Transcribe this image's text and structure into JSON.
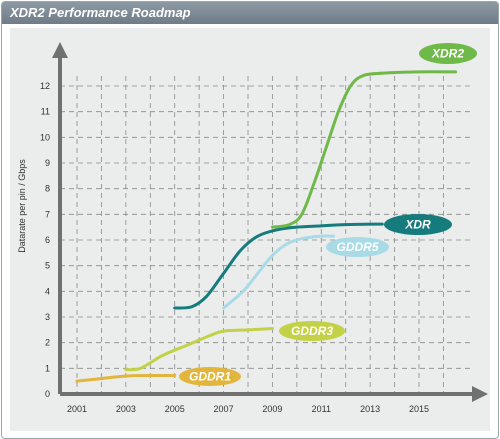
{
  "header": {
    "title": "XDR2 Performance Roadmap"
  },
  "chart_data": {
    "type": "line",
    "title": "XDR2 Performance Roadmap",
    "xlabel": "",
    "ylabel": "Datarate per pin / Gbps",
    "xlim": [
      2000.5,
      2017
    ],
    "ylim": [
      0,
      13
    ],
    "x_ticks": [
      2001,
      2003,
      2005,
      2007,
      2009,
      2011,
      2013,
      2015
    ],
    "y_ticks": [
      0,
      1,
      2,
      3,
      4,
      5,
      6,
      7,
      8,
      9,
      10,
      11,
      12
    ],
    "grid": true,
    "series": [
      {
        "name": "GDDR1",
        "color": "#e2b63c",
        "points": [
          [
            2001,
            0.5
          ],
          [
            2002,
            0.6
          ],
          [
            2003,
            0.7
          ],
          [
            2004,
            0.72
          ],
          [
            2005,
            0.72
          ]
        ]
      },
      {
        "name": "GDDR3",
        "color": "#c3d147",
        "points": [
          [
            2003,
            0.95
          ],
          [
            2003.6,
            1.0
          ],
          [
            2004.5,
            1.5
          ],
          [
            2005.5,
            1.9
          ],
          [
            2006.5,
            2.3
          ],
          [
            2007,
            2.45
          ],
          [
            2008,
            2.5
          ],
          [
            2009,
            2.55
          ]
        ]
      },
      {
        "name": "XDR",
        "color": "#157b7d",
        "points": [
          [
            2005,
            3.35
          ],
          [
            2005.7,
            3.4
          ],
          [
            2006.3,
            3.8
          ],
          [
            2007,
            4.7
          ],
          [
            2007.7,
            5.6
          ],
          [
            2008.4,
            6.15
          ],
          [
            2009.2,
            6.4
          ],
          [
            2010,
            6.5
          ],
          [
            2011,
            6.55
          ],
          [
            2012,
            6.6
          ],
          [
            2013.5,
            6.62
          ]
        ]
      },
      {
        "name": "GDDR5",
        "color": "#a8dbe6",
        "points": [
          [
            2007,
            3.35
          ],
          [
            2007.8,
            4.0
          ],
          [
            2008.4,
            4.7
          ],
          [
            2009,
            5.4
          ],
          [
            2009.6,
            5.85
          ],
          [
            2010.2,
            6.05
          ],
          [
            2011,
            6.15
          ],
          [
            2011.5,
            6.15
          ]
        ]
      },
      {
        "name": "XDR2",
        "color": "#6fb949",
        "points": [
          [
            2009,
            6.5
          ],
          [
            2009.7,
            6.6
          ],
          [
            2010.2,
            7.0
          ],
          [
            2010.7,
            8.2
          ],
          [
            2011.2,
            9.6
          ],
          [
            2011.7,
            11.0
          ],
          [
            2012.2,
            12.0
          ],
          [
            2012.7,
            12.4
          ],
          [
            2013.5,
            12.5
          ],
          [
            2015,
            12.55
          ],
          [
            2016.5,
            12.55
          ]
        ]
      }
    ]
  }
}
